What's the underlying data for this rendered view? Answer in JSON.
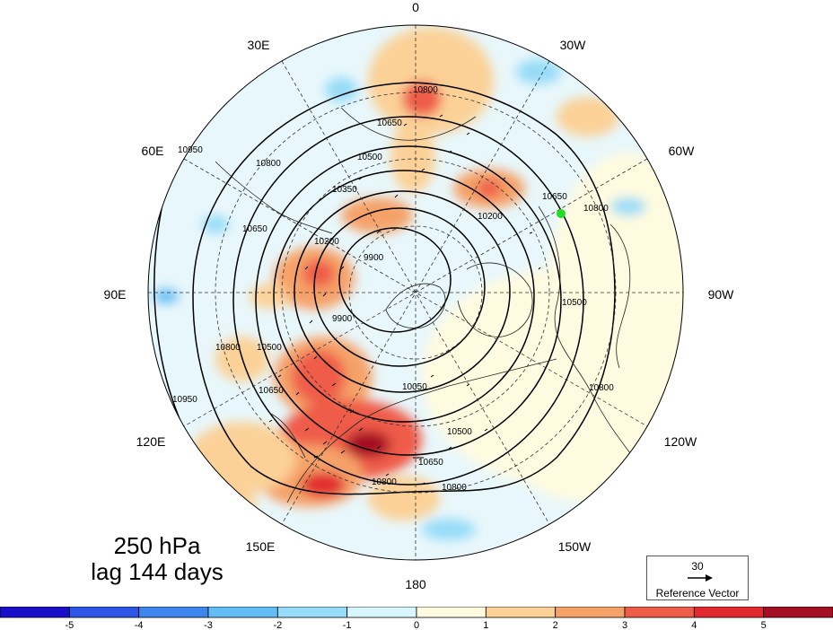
{
  "title": {
    "level": "250 hPa",
    "lag": "lag 144 days"
  },
  "longitude_labels": [
    "0",
    "30W",
    "60W",
    "90W",
    "120W",
    "150W",
    "180",
    "150E",
    "120E",
    "90E",
    "60E",
    "30E"
  ],
  "contour_labels": [
    "10800",
    "10650",
    "10500",
    "10350",
    "10200",
    "10050",
    "9900",
    "10950"
  ],
  "reference_vector": {
    "value": "30",
    "label": "Reference Vector"
  },
  "colorbar": {
    "tick_labels": [
      "-5",
      "-4",
      "-3",
      "-2",
      "-1",
      "0",
      "1",
      "2",
      "3",
      "4",
      "5"
    ],
    "colors": [
      "#1a0fc8",
      "#2f55e6",
      "#3c86ee",
      "#63bcf6",
      "#96dcf8",
      "#d8f6fd",
      "#fffbe0",
      "#fbd197",
      "#f5a269",
      "#ef5c48",
      "#e12a2f",
      "#a50f23"
    ]
  },
  "colors": {
    "marker": "#22dd22",
    "contour": "#000000"
  }
}
